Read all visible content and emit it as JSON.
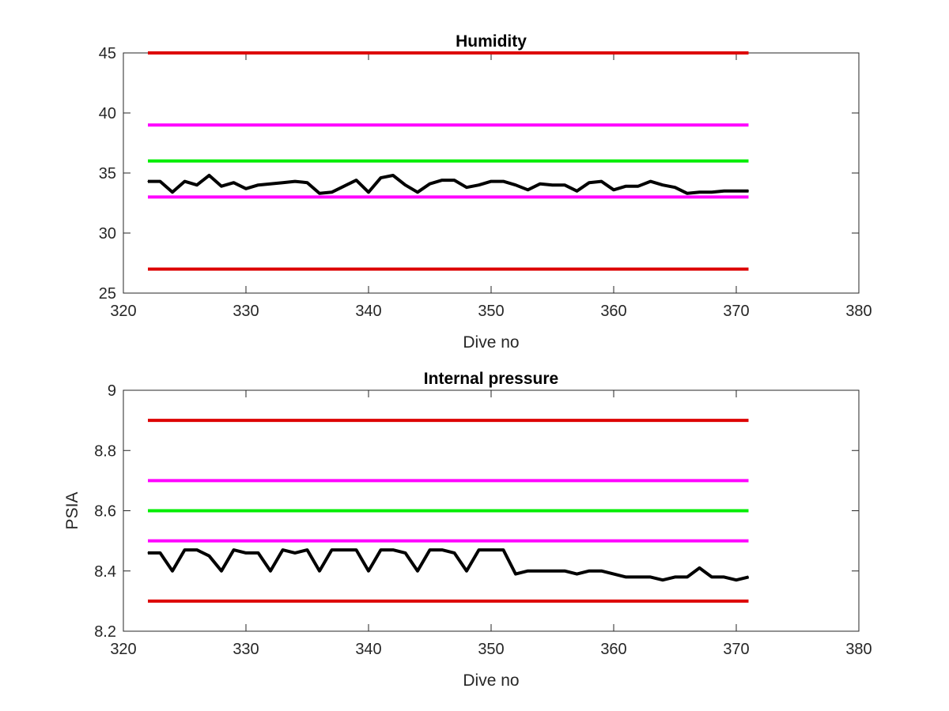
{
  "chart_data": [
    {
      "type": "line",
      "title": "Humidity",
      "xlabel": "Dive no",
      "ylabel": "",
      "xlim": [
        320,
        380
      ],
      "ylim": [
        25,
        45
      ],
      "x_ticks": [
        "320",
        "330",
        "340",
        "350",
        "360",
        "370",
        "380"
      ],
      "y_ticks": [
        "25",
        "30",
        "35",
        "40",
        "45"
      ],
      "grid": false,
      "reference_lines": [
        {
          "y": 45,
          "x_range": [
            322,
            371
          ],
          "color": "#dd0000"
        },
        {
          "y": 39,
          "x_range": [
            322,
            371
          ],
          "color": "#ff00ff"
        },
        {
          "y": 36,
          "x_range": [
            322,
            371
          ],
          "color": "#00ee00"
        },
        {
          "y": 33,
          "x_range": [
            322,
            371
          ],
          "color": "#ff00ff"
        },
        {
          "y": 27,
          "x_range": [
            322,
            371
          ],
          "color": "#dd0000"
        }
      ],
      "series": [
        {
          "color": "#000000",
          "x": [
            322,
            323,
            324,
            325,
            326,
            327,
            328,
            329,
            330,
            331,
            332,
            333,
            334,
            335,
            336,
            337,
            338,
            339,
            340,
            341,
            342,
            343,
            344,
            345,
            346,
            347,
            348,
            349,
            350,
            351,
            352,
            353,
            354,
            355,
            356,
            357,
            358,
            359,
            360,
            361,
            362,
            363,
            364,
            365,
            366,
            367,
            368,
            369,
            370,
            371
          ],
          "y": [
            34.3,
            34.3,
            33.4,
            34.3,
            34.0,
            34.8,
            33.9,
            34.2,
            33.7,
            34.0,
            34.1,
            34.2,
            34.3,
            34.2,
            33.3,
            33.4,
            33.9,
            34.4,
            33.4,
            34.6,
            34.8,
            34.0,
            33.4,
            34.1,
            34.4,
            34.4,
            33.8,
            34.0,
            34.3,
            34.3,
            34.0,
            33.6,
            34.1,
            34.0,
            34.0,
            33.5,
            34.2,
            34.3,
            33.6,
            33.9,
            33.9,
            34.3,
            34.0,
            33.8,
            33.3,
            33.4,
            33.4,
            33.5,
            33.5,
            33.5
          ]
        }
      ]
    },
    {
      "type": "line",
      "title": "Internal pressure",
      "xlabel": "Dive no",
      "ylabel": "PSIA",
      "xlim": [
        320,
        380
      ],
      "ylim": [
        8.2,
        9
      ],
      "x_ticks": [
        "320",
        "330",
        "340",
        "350",
        "360",
        "370",
        "380"
      ],
      "y_ticks": [
        "8.2",
        "8.4",
        "8.6",
        "8.8",
        "9"
      ],
      "grid": false,
      "reference_lines": [
        {
          "y": 8.9,
          "x_range": [
            322,
            371
          ],
          "color": "#dd0000"
        },
        {
          "y": 8.7,
          "x_range": [
            322,
            371
          ],
          "color": "#ff00ff"
        },
        {
          "y": 8.6,
          "x_range": [
            322,
            371
          ],
          "color": "#00ee00"
        },
        {
          "y": 8.5,
          "x_range": [
            322,
            371
          ],
          "color": "#ff00ff"
        },
        {
          "y": 8.3,
          "x_range": [
            322,
            371
          ],
          "color": "#dd0000"
        }
      ],
      "series": [
        {
          "color": "#000000",
          "x": [
            322,
            323,
            324,
            325,
            326,
            327,
            328,
            329,
            330,
            331,
            332,
            333,
            334,
            335,
            336,
            337,
            338,
            339,
            340,
            341,
            342,
            343,
            344,
            345,
            346,
            347,
            348,
            349,
            350,
            351,
            352,
            353,
            354,
            355,
            356,
            357,
            358,
            359,
            360,
            361,
            362,
            363,
            364,
            365,
            366,
            367,
            368,
            369,
            370,
            371
          ],
          "y": [
            8.46,
            8.46,
            8.4,
            8.47,
            8.47,
            8.45,
            8.4,
            8.47,
            8.46,
            8.46,
            8.4,
            8.47,
            8.46,
            8.47,
            8.4,
            8.47,
            8.47,
            8.47,
            8.4,
            8.47,
            8.47,
            8.46,
            8.4,
            8.47,
            8.47,
            8.46,
            8.4,
            8.47,
            8.47,
            8.47,
            8.39,
            8.4,
            8.4,
            8.4,
            8.4,
            8.39,
            8.4,
            8.4,
            8.39,
            8.38,
            8.38,
            8.38,
            8.37,
            8.38,
            8.38,
            8.41,
            8.38,
            8.38,
            8.37,
            8.38
          ]
        }
      ]
    }
  ]
}
